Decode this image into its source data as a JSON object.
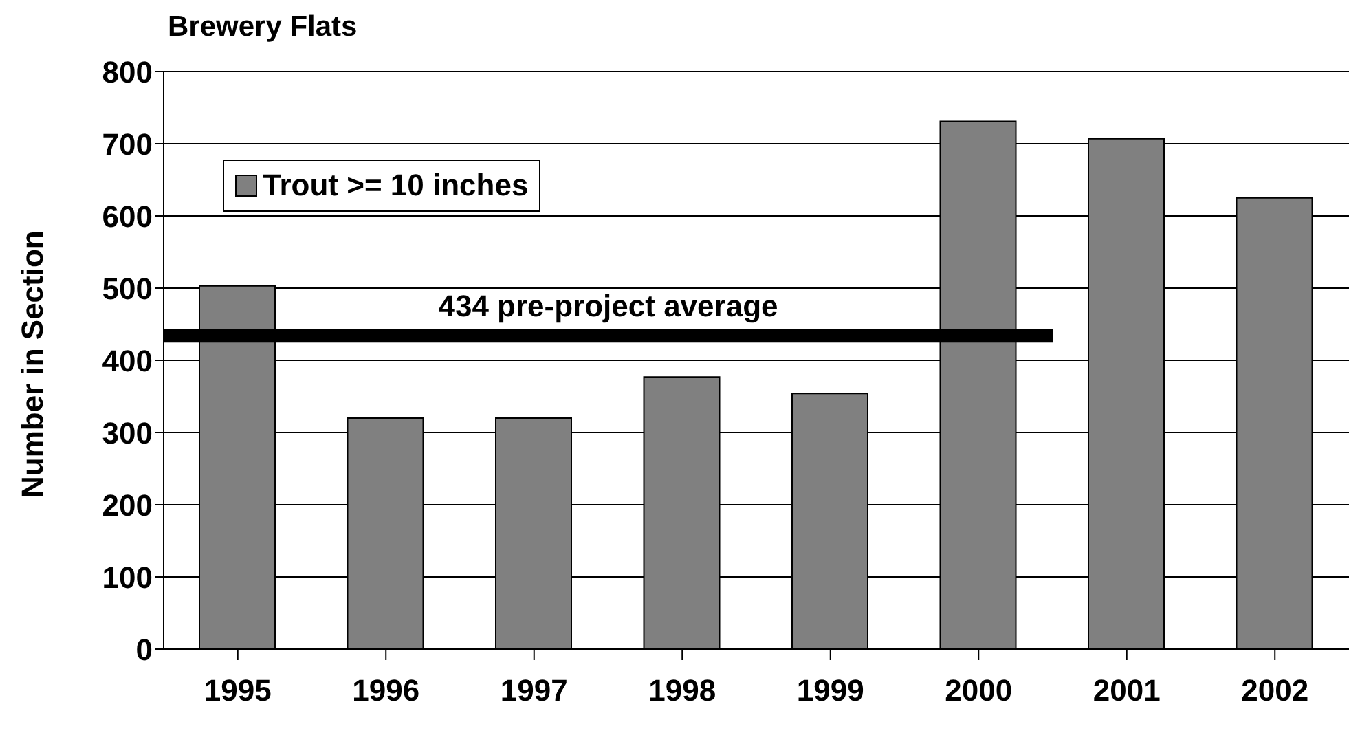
{
  "chart_data": {
    "type": "bar",
    "title": "Brewery Flats",
    "ylabel": "Number in Section",
    "categories": [
      "1995",
      "1996",
      "1997",
      "1998",
      "1999",
      "2000",
      "2001",
      "2002"
    ],
    "series": [
      {
        "name": "Trout >= 10 inches",
        "color": "#808080",
        "values": [
          503,
          320,
          320,
          377,
          354,
          731,
          707,
          625
        ]
      }
    ],
    "ylim": [
      0,
      800
    ],
    "yticks": [
      0,
      100,
      200,
      300,
      400,
      500,
      600,
      700,
      800
    ],
    "grid": "y",
    "legend": "top left",
    "ref_lines": [
      {
        "axis": "y",
        "value": 434,
        "label": "434 pre-project average",
        "color": "#000000"
      }
    ]
  }
}
